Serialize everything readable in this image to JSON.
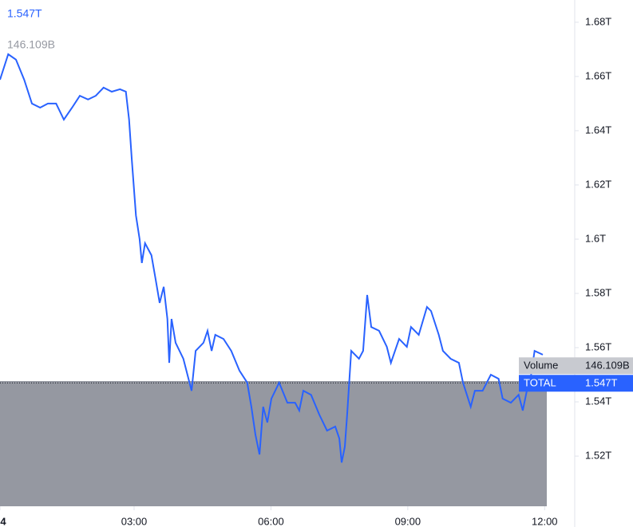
{
  "chart_data": {
    "type": "line",
    "legend_value": "1.547T",
    "legend_volume": "146.109B",
    "series": [
      {
        "name": "TOTAL",
        "color": "#2962ff",
        "x": [
          0.06,
          0.24,
          0.41,
          0.59,
          0.76,
          0.94,
          1.11,
          1.29,
          1.46,
          1.64,
          1.81,
          1.99,
          2.16,
          2.33,
          2.51,
          2.69,
          2.82,
          2.89,
          2.95,
          3.04,
          3.12,
          3.17,
          3.24,
          3.38,
          3.47,
          3.56,
          3.65,
          3.73,
          3.77,
          3.82,
          3.91,
          4.08,
          4.26,
          4.35,
          4.52,
          4.61,
          4.7,
          4.78,
          4.96,
          5.13,
          5.31,
          5.48,
          5.57,
          5.66,
          5.75,
          5.83,
          5.92,
          6.01,
          6.18,
          6.36,
          6.53,
          6.62,
          6.71,
          6.88,
          7.06,
          7.23,
          7.41,
          7.5,
          7.55,
          7.62,
          7.67,
          7.76,
          7.93,
          8.02,
          8.11,
          8.2,
          8.37,
          8.54,
          8.63,
          8.81,
          8.98,
          9.07,
          9.24,
          9.42,
          9.51,
          9.68,
          9.77,
          9.94,
          10.12,
          10.21,
          10.38,
          10.47,
          10.64,
          10.82,
          10.99,
          11.08,
          11.26,
          11.43,
          11.52,
          11.61,
          11.69,
          11.78,
          11.96
        ],
        "values": [
          1.6588,
          1.6682,
          1.6662,
          1.6588,
          1.65,
          1.6485,
          1.65,
          1.65,
          1.6441,
          1.6485,
          1.6529,
          1.6515,
          1.6529,
          1.6559,
          1.6544,
          1.6553,
          1.6544,
          1.6441,
          1.6294,
          1.6088,
          1.6,
          1.5912,
          1.5985,
          1.5941,
          1.5853,
          1.5765,
          1.5824,
          1.5706,
          1.5544,
          1.5706,
          1.5618,
          1.5559,
          1.5441,
          1.5588,
          1.5618,
          1.5662,
          1.5588,
          1.5647,
          1.5632,
          1.5588,
          1.5515,
          1.5471,
          1.5382,
          1.5279,
          1.5206,
          1.5382,
          1.5324,
          1.5412,
          1.5471,
          1.5397,
          1.5397,
          1.5368,
          1.5441,
          1.5426,
          1.5353,
          1.5294,
          1.5309,
          1.5265,
          1.5176,
          1.5235,
          1.5353,
          1.5588,
          1.5559,
          1.5588,
          1.5794,
          1.5676,
          1.5662,
          1.5603,
          1.5544,
          1.5632,
          1.5603,
          1.5676,
          1.5647,
          1.575,
          1.5735,
          1.5647,
          1.5588,
          1.5559,
          1.5544,
          1.5471,
          1.5382,
          1.5441,
          1.5441,
          1.55,
          1.5485,
          1.5412,
          1.5397,
          1.5426,
          1.5368,
          1.5441,
          1.5485,
          1.5588,
          1.5574
        ]
      }
    ],
    "price_line": 1.547,
    "badges": [
      {
        "name": "Volume",
        "value": "146.109B"
      },
      {
        "name": "TOTAL",
        "value": "1.547T"
      }
    ],
    "xlim": [
      0.06,
      12.66
    ],
    "ylim": [
      1.5015,
      1.6882
    ],
    "xticks": [
      {
        "value": 0.06,
        "label": "4"
      },
      {
        "value": 3,
        "label": "03:00"
      },
      {
        "value": 6,
        "label": "06:00"
      },
      {
        "value": 9,
        "label": "09:00"
      },
      {
        "value": 12,
        "label": "12:00"
      }
    ],
    "yticks": [
      {
        "value": 1.52,
        "label": "1.52T"
      },
      {
        "value": 1.54,
        "label": "1.54T"
      },
      {
        "value": 1.56,
        "label": "1.56T"
      },
      {
        "value": 1.58,
        "label": "1.58T"
      },
      {
        "value": 1.6,
        "label": "1.6T"
      },
      {
        "value": 1.62,
        "label": "1.62T"
      },
      {
        "value": 1.64,
        "label": "1.64T"
      },
      {
        "value": 1.66,
        "label": "1.66T"
      },
      {
        "value": 1.68,
        "label": "1.68T"
      }
    ]
  }
}
